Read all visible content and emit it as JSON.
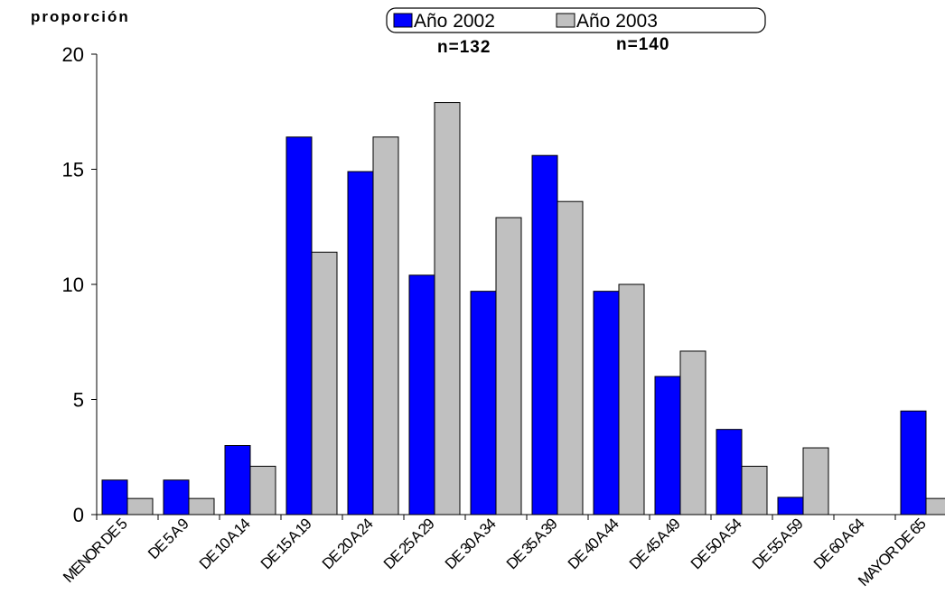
{
  "chart_data": {
    "type": "bar",
    "ylabel": "proporción",
    "ylim": [
      0,
      20
    ],
    "yticks": [
      "0",
      "5",
      "10",
      "15",
      "20"
    ],
    "grid": false,
    "legend_position": "top-center",
    "categories": [
      "MENOR DE 5",
      "DE 5 A 9",
      "DE 10 A 14",
      "DE 15 A 19",
      "DE 20 A 24",
      "DE 25 A 29",
      "DE 30 A 34",
      "DE 35 A 39",
      "DE 40 A 44",
      "DE 45 A 49",
      "DE 50 A 54",
      "DE 55 A 59",
      "DE 60 A 64",
      "MAYOR DE 65"
    ],
    "series": [
      {
        "name": "Año 2002",
        "color": "#0000ff",
        "values": [
          1.5,
          1.5,
          3.0,
          16.4,
          14.9,
          10.4,
          9.7,
          15.6,
          9.7,
          6.0,
          3.7,
          0.75,
          0,
          4.5
        ]
      },
      {
        "name": "Año 2003",
        "color": "#c0c0c0",
        "values": [
          0.7,
          0.7,
          2.1,
          11.4,
          16.4,
          17.9,
          12.9,
          13.6,
          10.0,
          7.1,
          2.1,
          2.9,
          0,
          0.7
        ]
      }
    ],
    "annotations": [
      "n=132",
      "n=140"
    ]
  }
}
